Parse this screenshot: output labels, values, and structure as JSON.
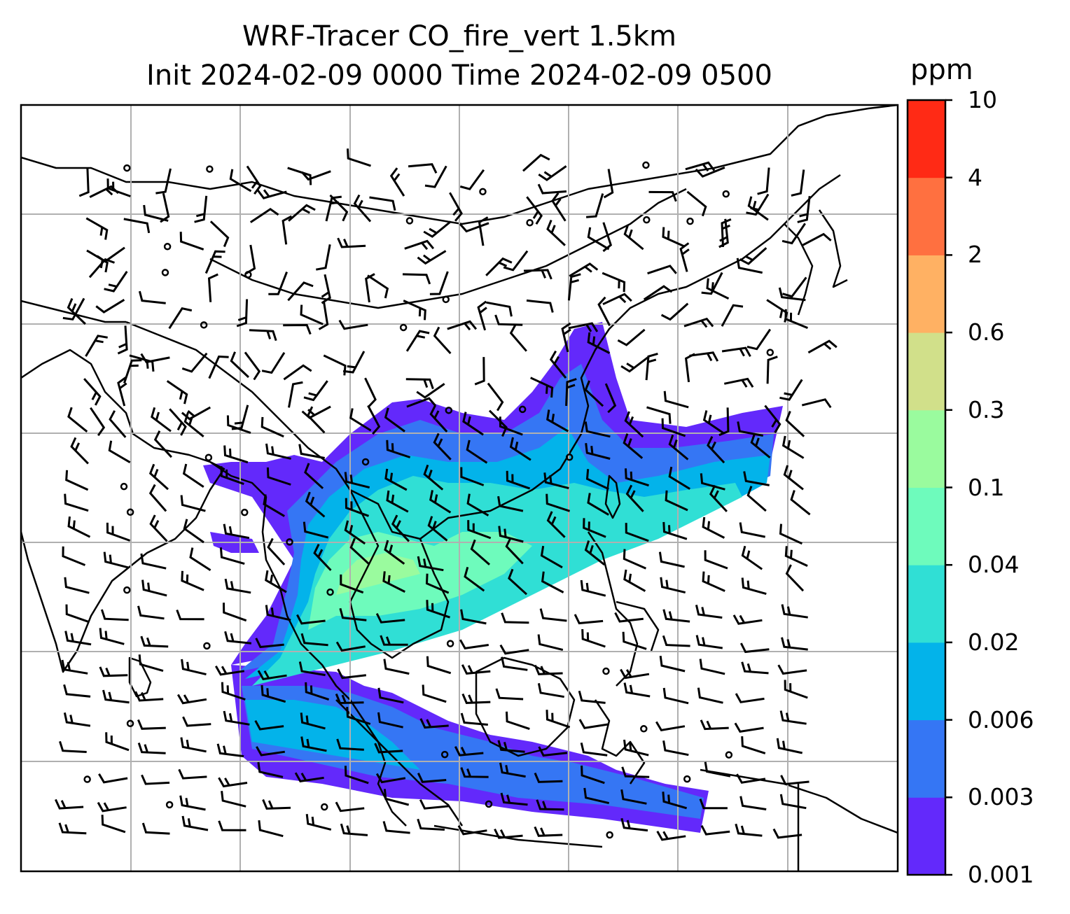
{
  "title_line1": "WRF-Tracer CO_fire_vert 1.5km",
  "title_line2": "Init 2024-02-09 0000 Time 2024-02-09 0500",
  "colorbar": {
    "unit": "ppm",
    "levels": [
      "0.001",
      "0.003",
      "0.006",
      "0.02",
      "0.04",
      "0.1",
      "0.3",
      "0.6",
      "2",
      "4",
      "10"
    ],
    "colors": [
      "#6329fb",
      "#3576f4",
      "#03b3ea",
      "#30dfd5",
      "#6efbbc",
      "#9afb9e",
      "#d1e08a",
      "#ffb163",
      "#ff7040",
      "#ff2a15"
    ]
  },
  "map": {
    "gridlines": true,
    "plume_colors": [
      "#6329fb",
      "#3576f4",
      "#03b3ea",
      "#30dfd5",
      "#6efbbc",
      "#9afb9e"
    ]
  }
}
